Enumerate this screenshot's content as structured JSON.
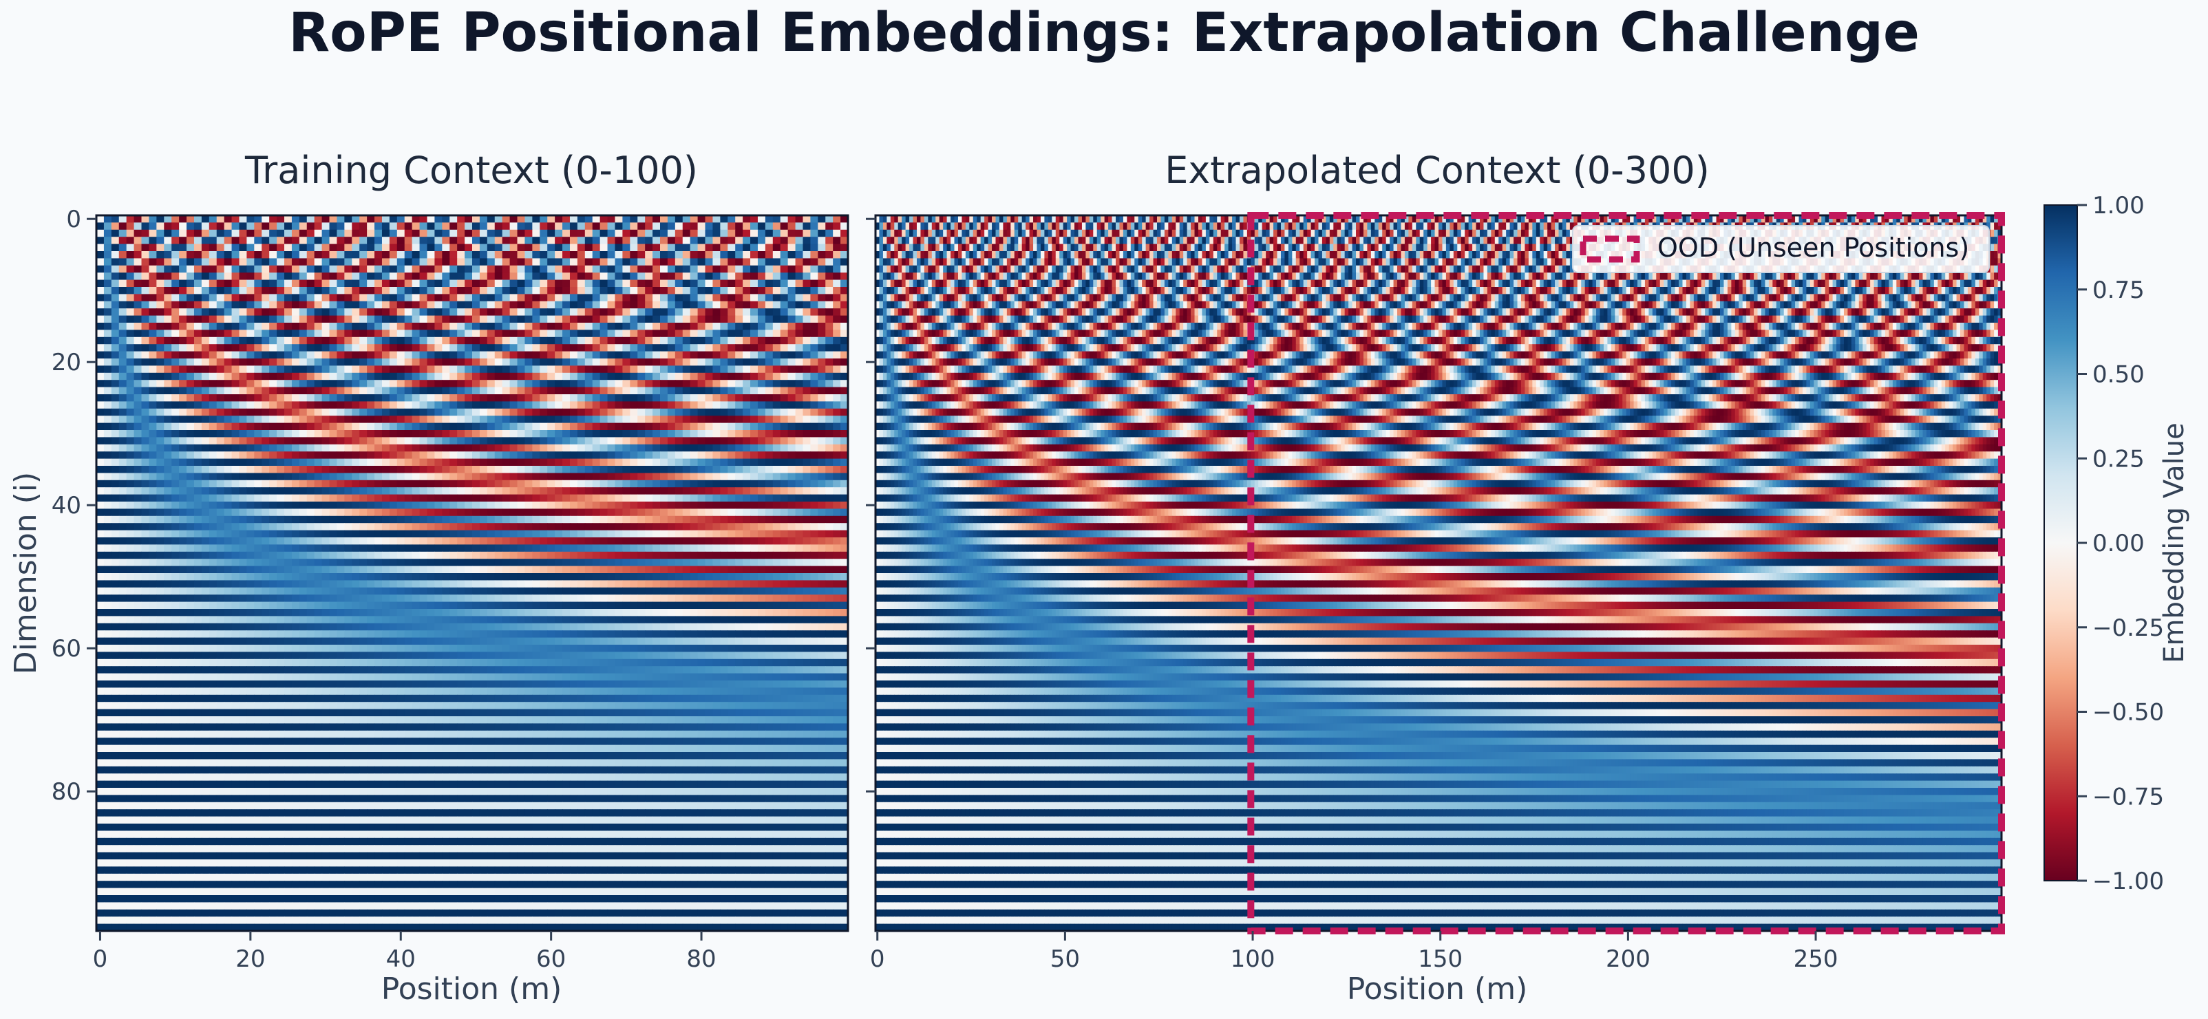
{
  "figure_title": "RoPE Positional Embeddings: Extrapolation Challenge",
  "colors": {
    "background": "#f8fafc",
    "ood_marker": "#c2185b",
    "cmap_low": "#67001f",
    "cmap_mid": "#f7f7f7",
    "cmap_high": "#053061"
  },
  "chart_data": [
    {
      "type": "heatmap",
      "title": "Training Context (0-100)",
      "xlabel": "Position (m)",
      "ylabel": "Dimension (i)",
      "x_range": [
        0,
        99
      ],
      "y_range": [
        0,
        99
      ],
      "xticks": [
        0,
        20,
        40,
        60,
        80
      ],
      "yticks": [
        0,
        20,
        40,
        60,
        80
      ],
      "colormap": "RdBu"
    },
    {
      "type": "heatmap",
      "title": "Extrapolated Context (0-300)",
      "xlabel": "Position (m)",
      "ylabel": "",
      "x_range": [
        0,
        299
      ],
      "y_range": [
        0,
        99
      ],
      "xticks": [
        0,
        50,
        100,
        150,
        200,
        250
      ],
      "yticks": [
        0,
        20,
        40,
        60,
        80
      ],
      "colormap": "RdBu",
      "ood_region": {
        "x_start": 100,
        "x_end": 299,
        "y_start": 0,
        "y_end": 99
      },
      "legend": {
        "label": "OOD (Unseen Positions)",
        "placement": "top-right"
      }
    }
  ],
  "colorbar": {
    "label": "Embedding Value",
    "range": [
      -1.0,
      1.0
    ],
    "ticks": [
      "1.00",
      "0.75",
      "0.50",
      "0.25",
      "0.00",
      "−0.25",
      "−0.50",
      "−0.75",
      "−1.00"
    ]
  }
}
